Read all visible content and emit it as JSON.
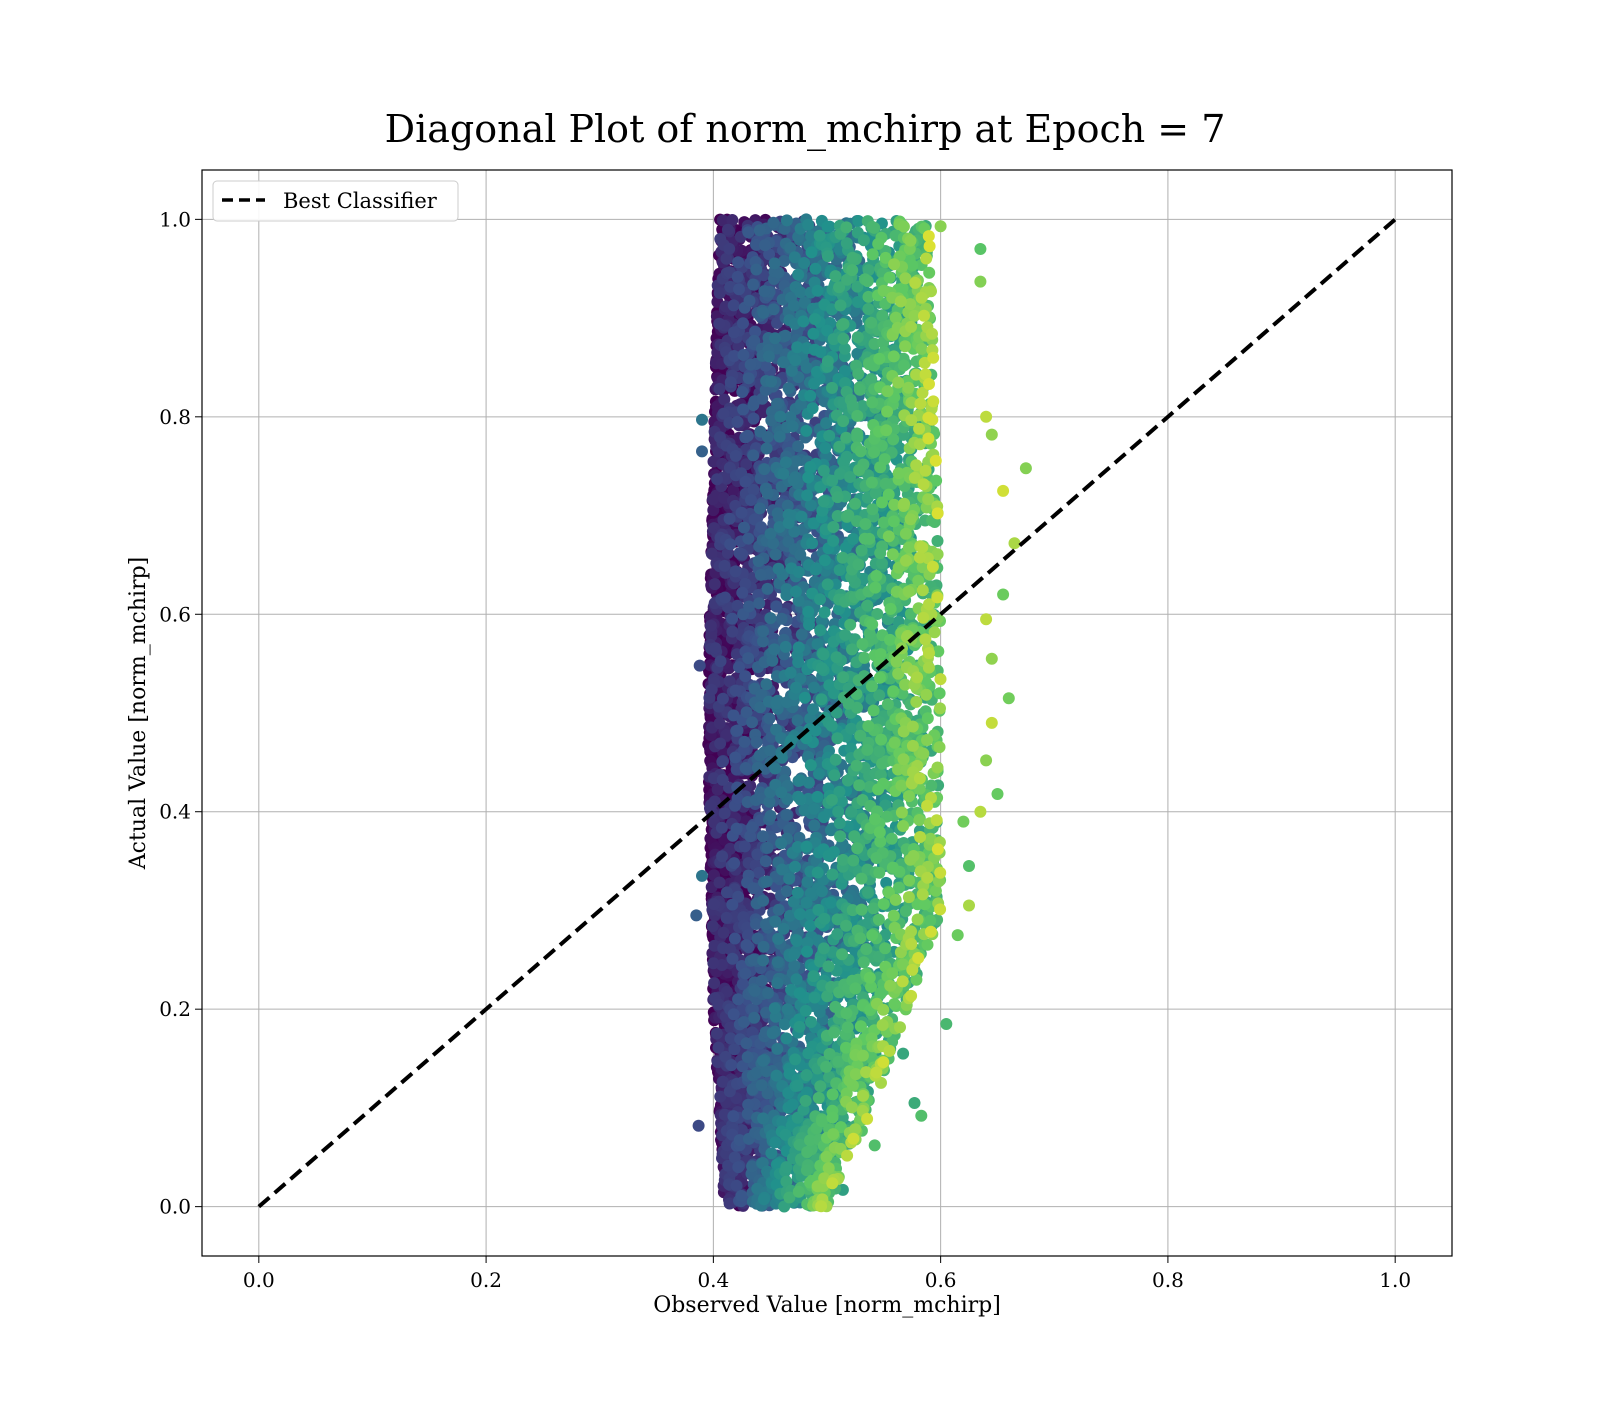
{
  "chart_data": {
    "type": "scatter",
    "title": "Diagonal Plot of norm_mchirp at Epoch = 7",
    "xlabel": "Observed Value [norm_mchirp]",
    "ylabel": "Actual Value [norm_mchirp]",
    "xlim": [
      -0.05,
      1.05
    ],
    "ylim": [
      -0.05,
      1.05
    ],
    "xticks": [
      "0.0",
      "0.2",
      "0.4",
      "0.6",
      "0.8",
      "1.0"
    ],
    "yticks": [
      "0.0",
      "0.2",
      "0.4",
      "0.6",
      "0.8",
      "1.0"
    ],
    "grid": true,
    "legend": {
      "position": "top-left",
      "entries": [
        "Best Classifier"
      ]
    },
    "reference_line": {
      "name": "Best Classifier",
      "x": [
        0.0,
        1.0
      ],
      "y": [
        0.0,
        1.0
      ],
      "style": "dashed",
      "color": "#000000"
    },
    "scatter_colormap": "viridis",
    "scatter_colormap_stops": [
      "#440154",
      "#3b528b",
      "#21918c",
      "#5ec962",
      "#fde725"
    ],
    "scatter_distribution": {
      "x_min": 0.4,
      "x_max": 0.6,
      "x_min_by_actual": [
        [
          0.0,
          0.41
        ],
        [
          0.2,
          0.4
        ],
        [
          0.5,
          0.395
        ],
        [
          1.0,
          0.405
        ]
      ],
      "x_max_by_actual": [
        [
          0.0,
          0.5
        ],
        [
          0.1,
          0.54
        ],
        [
          0.3,
          0.6
        ],
        [
          0.6,
          0.6
        ],
        [
          1.0,
          0.59
        ]
      ],
      "y_min": 0.0,
      "y_max": 1.0,
      "point_count": 7000
    },
    "scatter_outliers": [
      [
        0.387,
        0.082
      ],
      [
        0.385,
        0.295
      ],
      [
        0.39,
        0.335
      ],
      [
        0.388,
        0.548
      ],
      [
        0.39,
        0.765
      ],
      [
        0.39,
        0.797
      ],
      [
        0.605,
        0.185
      ],
      [
        0.615,
        0.275
      ],
      [
        0.625,
        0.305
      ],
      [
        0.625,
        0.345
      ],
      [
        0.62,
        0.39
      ],
      [
        0.635,
        0.4
      ],
      [
        0.65,
        0.418
      ],
      [
        0.64,
        0.452
      ],
      [
        0.645,
        0.49
      ],
      [
        0.66,
        0.515
      ],
      [
        0.645,
        0.555
      ],
      [
        0.64,
        0.595
      ],
      [
        0.655,
        0.62
      ],
      [
        0.665,
        0.672
      ],
      [
        0.655,
        0.725
      ],
      [
        0.675,
        0.748
      ],
      [
        0.645,
        0.782
      ],
      [
        0.64,
        0.8
      ],
      [
        0.635,
        0.97
      ],
      [
        0.635,
        0.937
      ],
      [
        0.6,
        0.993
      ],
      [
        0.577,
        0.105
      ],
      [
        0.583,
        0.092
      ],
      [
        0.542,
        0.062
      ],
      [
        0.567,
        0.155
      ],
      [
        0.514,
        0.017
      ]
    ]
  }
}
